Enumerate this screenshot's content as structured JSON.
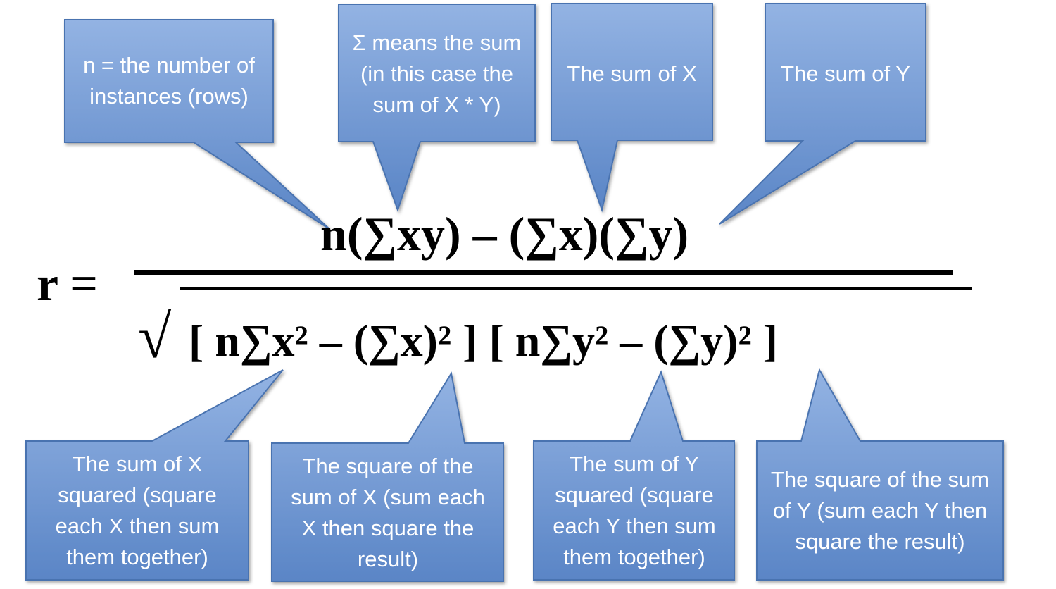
{
  "formula": {
    "r_symbol": "r =",
    "numerator": "n(∑xy) – (∑x)(∑y)",
    "radical": "√",
    "denominator": "[ n∑x² – (∑x)² ] [ n∑y² – (∑y)² ]"
  },
  "callouts": {
    "n_instances": "n = the number of instances (rows)",
    "sigma_sum": "Σ means the sum (in this case the sum of X * Y)",
    "sum_x": "The sum of X",
    "sum_y": "The sum of Y",
    "sum_x_squared": "The sum of X squared (square each X then sum them together)",
    "square_sum_x": "The square of the sum of X (sum each X then square the result)",
    "sum_y_squared": "The sum of Y squared (square each Y then sum them together)",
    "square_sum_y": "The square of the sum of Y (sum each Y then square the result)"
  },
  "colors": {
    "callout_top": "#8eaee0",
    "callout_bottom": "#5b86c8",
    "callout_border": "#4a73b0"
  }
}
